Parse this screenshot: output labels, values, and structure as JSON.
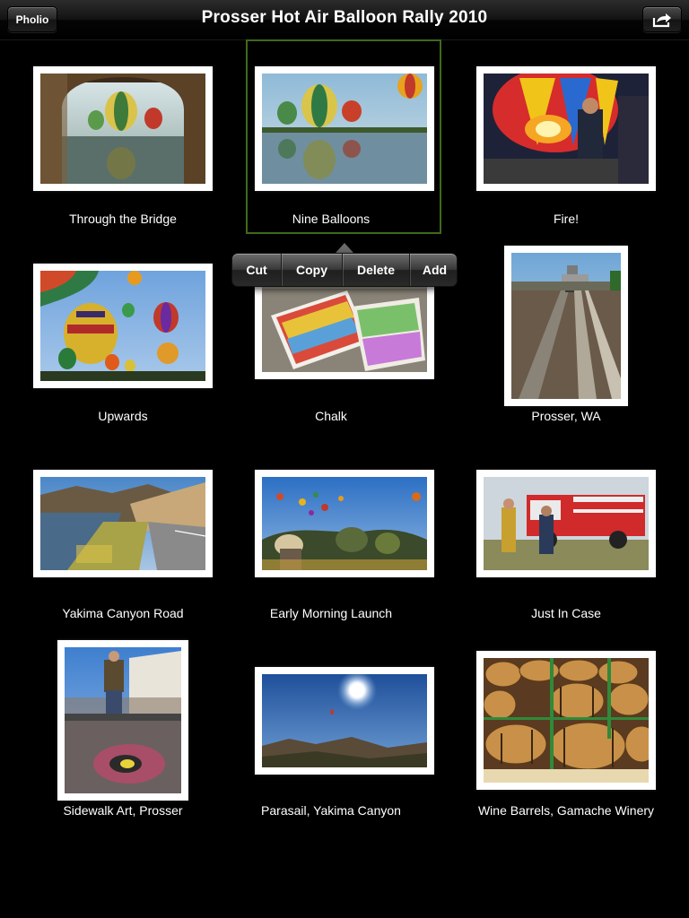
{
  "nav": {
    "title": "Prosser Hot Air Balloon Rally 2010",
    "back_label": "Pholio",
    "share_icon": "share-arrow-icon"
  },
  "context_menu": {
    "items": [
      "Cut",
      "Copy",
      "Delete",
      "Add"
    ]
  },
  "photos": [
    {
      "caption": "Through the Bridge",
      "selected": false
    },
    {
      "caption": "Nine Balloons",
      "selected": true
    },
    {
      "caption": "Fire!",
      "selected": false
    },
    {
      "caption": "Upwards",
      "selected": false
    },
    {
      "caption": "Chalk",
      "selected": false
    },
    {
      "caption": "Prosser, WA",
      "selected": false
    },
    {
      "caption": "Yakima Canyon Road",
      "selected": false
    },
    {
      "caption": "Early Morning Launch",
      "selected": false
    },
    {
      "caption": "Just In Case",
      "selected": false
    },
    {
      "caption": "Sidewalk Art, Prosser",
      "selected": false
    },
    {
      "caption": "Parasail, Yakima Canyon",
      "selected": false
    },
    {
      "caption": "Wine Barrels, Gamache Winery",
      "selected": false
    }
  ],
  "colors": {
    "background": "#000000",
    "selection_border": "#3e6a1c",
    "frame": "#ffffff"
  }
}
